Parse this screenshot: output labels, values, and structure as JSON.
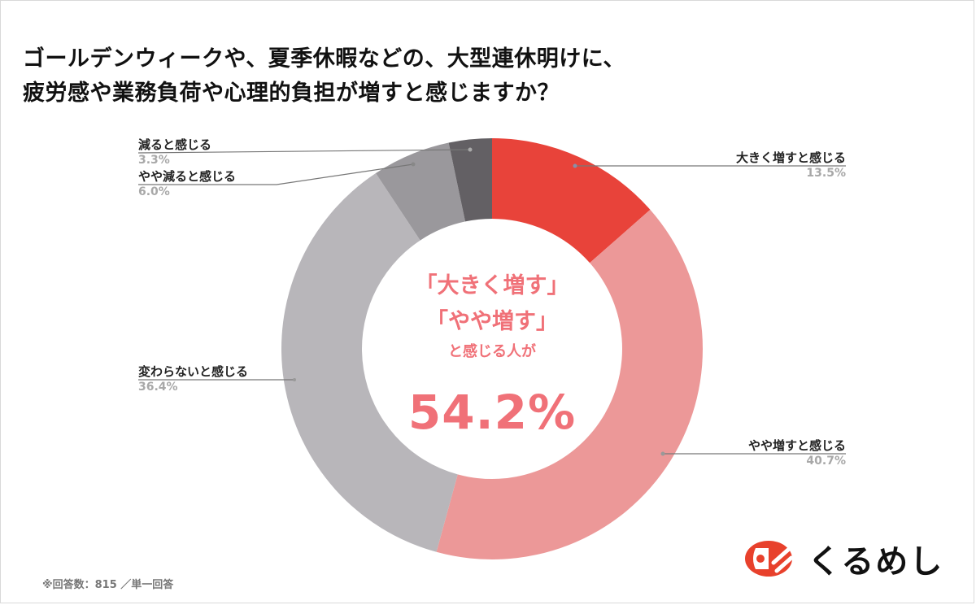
{
  "title": {
    "line1": "ゴールデンウィークや、夏季休暇などの、大型連休明けに、",
    "line2": "疲労感や業務負荷や心理的負担が増すと感じますか？"
  },
  "center_text": {
    "line1": "「大きく増す」",
    "line2": "「やや増す」",
    "line3": "と感じる人が",
    "value": "54.2%"
  },
  "labels": [
    {
      "name": "大きく増すと感じる",
      "pct": "13.5%"
    },
    {
      "name": "やや増すと感じる",
      "pct": "40.7%"
    },
    {
      "name": "変わらないと感じる",
      "pct": "36.4%"
    },
    {
      "name": "やや減ると感じる",
      "pct": "6.0%"
    },
    {
      "name": "減ると感じる",
      "pct": "3.3%"
    }
  ],
  "footnote": "※回答数：815 ／単一回答",
  "brand": {
    "name": "くるめし",
    "color": "#e8412c"
  },
  "colors": {
    "large_increase": "#e8433a",
    "slight_increase": "#ec9898",
    "no_change": "#b8b6ba",
    "slight_decrease": "#9a989c",
    "decrease": "#636064",
    "center_text": "#f07178"
  },
  "chart_data": {
    "type": "pie",
    "variant": "donut",
    "title": "ゴールデンウィークや、夏季休暇などの、大型連休明けに、疲労感や業務負荷や心理的負担が増すと感じますか？",
    "categories": [
      "大きく増すと感じる",
      "やや増すと感じる",
      "変わらないと感じる",
      "やや減ると感じる",
      "減ると感じる"
    ],
    "values": [
      13.5,
      40.7,
      36.4,
      6.0,
      3.3
    ],
    "unit": "%",
    "colors": [
      "#e8433a",
      "#ec9898",
      "#b8b6ba",
      "#9a989c",
      "#636064"
    ],
    "start_angle": "top (12 o'clock), clockwise",
    "center_annotation": "「大きく増す」「やや増す」と感じる人が 54.2%",
    "legend": "callout labels with leader lines",
    "note": "※回答数：815 ／単一回答"
  }
}
